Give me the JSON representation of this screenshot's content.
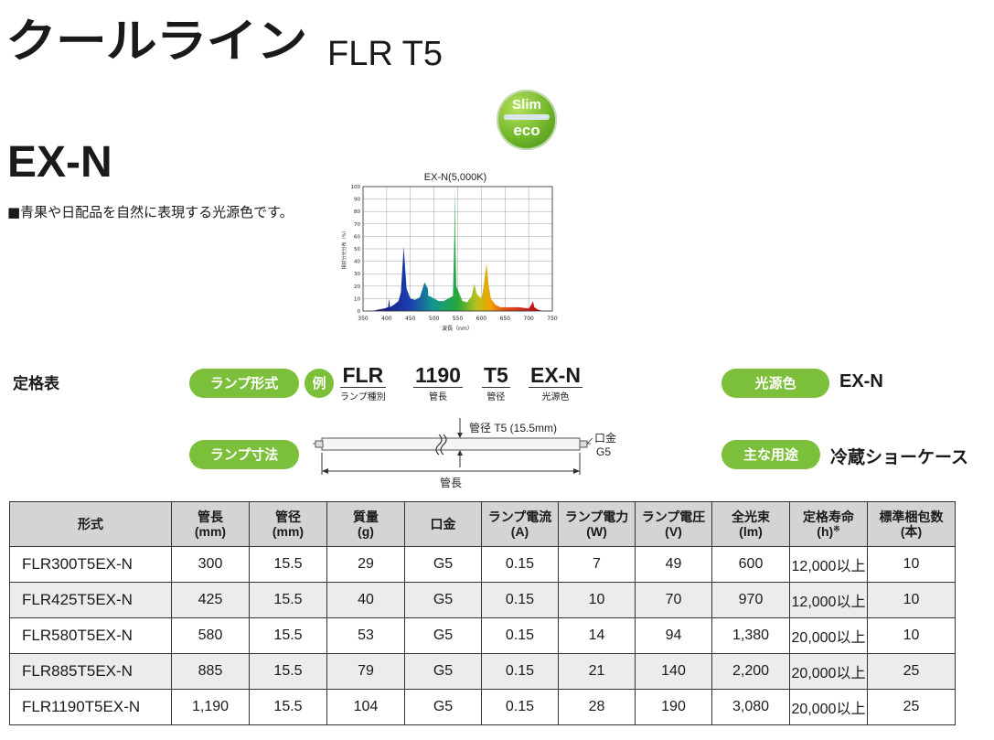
{
  "header": {
    "brand": "クールライン",
    "series": "FLR T5",
    "badge_top": "Slim",
    "badge_bottom": "eco",
    "color_code": "EX-N",
    "description": "■青果や日配品を自然に表現する光源色です。"
  },
  "chart_data": {
    "type": "area",
    "title": "EX-N(5,000K)",
    "xlabel": "波長（nm）",
    "ylabel": "相対分光分布（%）",
    "xlim": [
      350,
      750
    ],
    "ylim": [
      0,
      100
    ],
    "xticks": [
      350,
      400,
      450,
      500,
      550,
      600,
      650,
      700,
      750
    ],
    "yticks": [
      0,
      10,
      20,
      30,
      40,
      50,
      60,
      70,
      80,
      90,
      100
    ],
    "grid": true,
    "x": [
      350,
      360,
      370,
      380,
      395,
      403,
      405,
      407,
      415,
      425,
      430,
      434,
      436,
      438,
      442,
      450,
      460,
      470,
      480,
      487,
      488,
      490,
      500,
      510,
      520,
      540,
      543,
      544,
      545,
      547,
      560,
      570,
      580,
      585,
      590,
      600,
      605,
      608,
      611,
      615,
      620,
      630,
      640,
      660,
      680,
      700,
      707,
      709,
      712,
      720,
      730,
      750
    ],
    "y": [
      0,
      0,
      0,
      1,
      2,
      3,
      10,
      3,
      5,
      8,
      15,
      40,
      52,
      40,
      18,
      10,
      9,
      11,
      23,
      18,
      12,
      12,
      10,
      8,
      8,
      12,
      60,
      100,
      60,
      20,
      8,
      7,
      12,
      22,
      14,
      10,
      20,
      30,
      38,
      22,
      10,
      5,
      3,
      3,
      3,
      2,
      6,
      8,
      3,
      1,
      0,
      0
    ]
  },
  "spec": {
    "title": "定格表",
    "lamp_type_label": "ランプ形式",
    "example_label": "例",
    "codes": [
      {
        "code": "FLR",
        "caption": "ランプ種別"
      },
      {
        "code": "1190",
        "caption": "管長"
      },
      {
        "code": "T5",
        "caption": "管径"
      },
      {
        "code": "EX-N",
        "caption": "光源色"
      }
    ],
    "light_color_label": "光源色",
    "light_color_value": "EX-N",
    "dimension_label": "ランプ寸法",
    "diameter_label": "管径 T5 (15.5mm)",
    "base_label_1": "口金",
    "base_label_2": "G5",
    "length_label": "管長",
    "use_label": "主な用途",
    "use_value": "冷蔵ショーケース"
  },
  "table": {
    "headers": [
      [
        "形式",
        ""
      ],
      [
        "管長",
        "(mm)"
      ],
      [
        "管径",
        "(mm)"
      ],
      [
        "質量",
        "(g)"
      ],
      [
        "口金",
        ""
      ],
      [
        "ランプ電流",
        "(A)"
      ],
      [
        "ランプ電力",
        "(W)"
      ],
      [
        "ランプ電圧",
        "(V)"
      ],
      [
        "全光束",
        "(lm)"
      ],
      [
        "定格寿命",
        "(h)"
      ],
      [
        "標準梱包数",
        "(本)"
      ]
    ],
    "note_mark": "※",
    "rows": [
      [
        "FLR300T5EX-N",
        "300",
        "15.5",
        "29",
        "G5",
        "0.15",
        "7",
        "49",
        "600",
        "12,000以上",
        "10"
      ],
      [
        "FLR425T5EX-N",
        "425",
        "15.5",
        "40",
        "G5",
        "0.15",
        "10",
        "70",
        "970",
        "12,000以上",
        "10"
      ],
      [
        "FLR580T5EX-N",
        "580",
        "15.5",
        "53",
        "G5",
        "0.15",
        "14",
        "94",
        "1,380",
        "20,000以上",
        "10"
      ],
      [
        "FLR885T5EX-N",
        "885",
        "15.5",
        "79",
        "G5",
        "0.15",
        "21",
        "140",
        "2,200",
        "20,000以上",
        "25"
      ],
      [
        "FLR1190T5EX-N",
        "1,190",
        "15.5",
        "104",
        "G5",
        "0.15",
        "28",
        "190",
        "3,080",
        "20,000以上",
        "25"
      ]
    ]
  }
}
